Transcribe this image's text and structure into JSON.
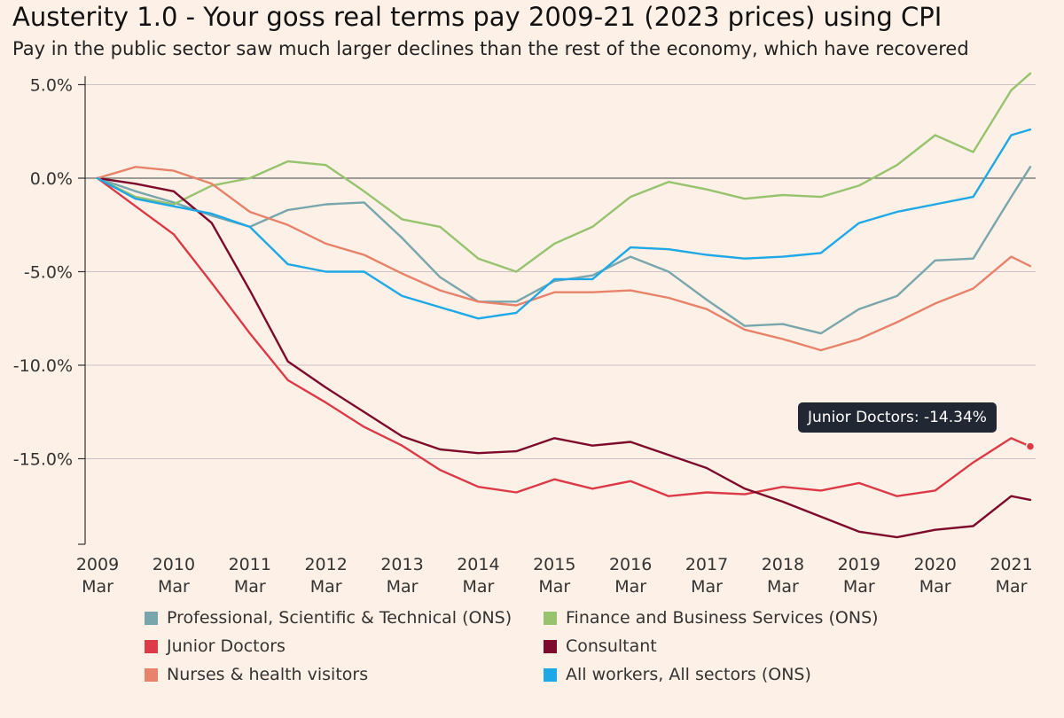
{
  "chart_data": {
    "type": "line",
    "title": "Austerity 1.0 - Your goss real terms pay 2009-21 (2023 prices) using CPI",
    "subtitle": "Pay in the public sector saw much larger declines than the rest of the economy, which have recovered",
    "xlabel": "",
    "ylabel": "",
    "x_ticks": [
      {
        "year": "2009",
        "month": "Mar"
      },
      {
        "year": "2010",
        "month": "Mar"
      },
      {
        "year": "2011",
        "month": "Mar"
      },
      {
        "year": "2012",
        "month": "Mar"
      },
      {
        "year": "2013",
        "month": "Mar"
      },
      {
        "year": "2014",
        "month": "Mar"
      },
      {
        "year": "2015",
        "month": "Mar"
      },
      {
        "year": "2016",
        "month": "Mar"
      },
      {
        "year": "2017",
        "month": "Mar"
      },
      {
        "year": "2018",
        "month": "Mar"
      },
      {
        "year": "2019",
        "month": "Mar"
      },
      {
        "year": "2020",
        "month": "Mar"
      },
      {
        "year": "2021",
        "month": "Mar"
      }
    ],
    "xlim": [
      "2009-03",
      "2021-06"
    ],
    "y_ticks": [
      "5.0%",
      "0.0%",
      "-5.0%",
      "-10.0%",
      "-15.0%"
    ],
    "ylim": [
      -19.5,
      5.5
    ],
    "grid": true,
    "legend_position": "bottom",
    "tooltip": "Junior Doctors: -14.34%",
    "series": [
      {
        "name": "Professional, Scientific & Technical (ONS)",
        "color": "#78a6ac",
        "points": [
          [
            "2009-03",
            0
          ],
          [
            "2009-09",
            -0.7
          ],
          [
            "2010-03",
            -1.3
          ],
          [
            "2010-09",
            -2.0
          ],
          [
            "2011-03",
            -2.6
          ],
          [
            "2011-09",
            -1.7
          ],
          [
            "2012-03",
            -1.4
          ],
          [
            "2012-09",
            -1.3
          ],
          [
            "2013-03",
            -3.2
          ],
          [
            "2013-09",
            -5.3
          ],
          [
            "2014-03",
            -6.6
          ],
          [
            "2014-09",
            -6.6
          ],
          [
            "2015-03",
            -5.5
          ],
          [
            "2015-09",
            -5.2
          ],
          [
            "2016-03",
            -4.2
          ],
          [
            "2016-09",
            -5.0
          ],
          [
            "2017-03",
            -6.5
          ],
          [
            "2017-09",
            -7.9
          ],
          [
            "2018-03",
            -7.8
          ],
          [
            "2018-09",
            -8.3
          ],
          [
            "2019-03",
            -7.0
          ],
          [
            "2019-09",
            -6.3
          ],
          [
            "2020-03",
            -4.4
          ],
          [
            "2020-09",
            -4.3
          ],
          [
            "2021-03",
            -1.0
          ],
          [
            "2021-06",
            0.6
          ]
        ]
      },
      {
        "name": "Finance and Business Services (ONS)",
        "color": "#97c36f",
        "points": [
          [
            "2009-03",
            0
          ],
          [
            "2009-09",
            -1.0
          ],
          [
            "2010-03",
            -1.4
          ],
          [
            "2010-09",
            -0.4
          ],
          [
            "2011-03",
            0.0
          ],
          [
            "2011-09",
            0.9
          ],
          [
            "2012-03",
            0.7
          ],
          [
            "2012-09",
            -0.7
          ],
          [
            "2013-03",
            -2.2
          ],
          [
            "2013-09",
            -2.6
          ],
          [
            "2014-03",
            -4.3
          ],
          [
            "2014-09",
            -5.0
          ],
          [
            "2015-03",
            -3.5
          ],
          [
            "2015-09",
            -2.6
          ],
          [
            "2016-03",
            -1.0
          ],
          [
            "2016-09",
            -0.2
          ],
          [
            "2017-03",
            -0.6
          ],
          [
            "2017-09",
            -1.1
          ],
          [
            "2018-03",
            -0.9
          ],
          [
            "2018-09",
            -1.0
          ],
          [
            "2019-03",
            -0.4
          ],
          [
            "2019-09",
            0.7
          ],
          [
            "2020-03",
            2.3
          ],
          [
            "2020-09",
            1.4
          ],
          [
            "2021-03",
            4.7
          ],
          [
            "2021-06",
            5.6
          ]
        ]
      },
      {
        "name": "Junior Doctors",
        "color": "#dc3a47",
        "points": [
          [
            "2009-03",
            0
          ],
          [
            "2009-09",
            -1.5
          ],
          [
            "2010-03",
            -3.0
          ],
          [
            "2010-09",
            -5.6
          ],
          [
            "2011-03",
            -8.3
          ],
          [
            "2011-09",
            -10.8
          ],
          [
            "2012-03",
            -12.0
          ],
          [
            "2012-09",
            -13.3
          ],
          [
            "2013-03",
            -14.3
          ],
          [
            "2013-09",
            -15.6
          ],
          [
            "2014-03",
            -16.5
          ],
          [
            "2014-09",
            -16.8
          ],
          [
            "2015-03",
            -16.1
          ],
          [
            "2015-09",
            -16.6
          ],
          [
            "2016-03",
            -16.2
          ],
          [
            "2016-09",
            -17.0
          ],
          [
            "2017-03",
            -16.8
          ],
          [
            "2017-09",
            -16.9
          ],
          [
            "2018-03",
            -16.5
          ],
          [
            "2018-09",
            -16.7
          ],
          [
            "2019-03",
            -16.3
          ],
          [
            "2019-09",
            -17.0
          ],
          [
            "2020-03",
            -16.7
          ],
          [
            "2020-09",
            -15.2
          ],
          [
            "2021-03",
            -13.9
          ],
          [
            "2021-06",
            -14.34
          ]
        ]
      },
      {
        "name": "Consultant",
        "color": "#7d0a2c",
        "points": [
          [
            "2009-03",
            0
          ],
          [
            "2009-09",
            -0.3
          ],
          [
            "2010-03",
            -0.7
          ],
          [
            "2010-09",
            -2.4
          ],
          [
            "2011-03",
            -6.0
          ],
          [
            "2011-09",
            -9.8
          ],
          [
            "2012-03",
            -11.2
          ],
          [
            "2012-09",
            -12.5
          ],
          [
            "2013-03",
            -13.8
          ],
          [
            "2013-09",
            -14.5
          ],
          [
            "2014-03",
            -14.7
          ],
          [
            "2014-09",
            -14.6
          ],
          [
            "2015-03",
            -13.9
          ],
          [
            "2015-09",
            -14.3
          ],
          [
            "2016-03",
            -14.1
          ],
          [
            "2016-09",
            -14.8
          ],
          [
            "2017-03",
            -15.5
          ],
          [
            "2017-09",
            -16.6
          ],
          [
            "2018-03",
            -17.3
          ],
          [
            "2018-09",
            -18.1
          ],
          [
            "2019-03",
            -18.9
          ],
          [
            "2019-09",
            -19.2
          ],
          [
            "2020-03",
            -18.8
          ],
          [
            "2020-09",
            -18.6
          ],
          [
            "2021-03",
            -17.0
          ],
          [
            "2021-06",
            -17.2
          ]
        ]
      },
      {
        "name": "Nurses & health visitors",
        "color": "#e8826a",
        "points": [
          [
            "2009-03",
            0
          ],
          [
            "2009-09",
            0.6
          ],
          [
            "2010-03",
            0.4
          ],
          [
            "2010-09",
            -0.3
          ],
          [
            "2011-03",
            -1.8
          ],
          [
            "2011-09",
            -2.5
          ],
          [
            "2012-03",
            -3.5
          ],
          [
            "2012-09",
            -4.1
          ],
          [
            "2013-03",
            -5.1
          ],
          [
            "2013-09",
            -6.0
          ],
          [
            "2014-03",
            -6.6
          ],
          [
            "2014-09",
            -6.8
          ],
          [
            "2015-03",
            -6.1
          ],
          [
            "2015-09",
            -6.1
          ],
          [
            "2016-03",
            -6.0
          ],
          [
            "2016-09",
            -6.4
          ],
          [
            "2017-03",
            -7.0
          ],
          [
            "2017-09",
            -8.1
          ],
          [
            "2018-03",
            -8.6
          ],
          [
            "2018-09",
            -9.2
          ],
          [
            "2019-03",
            -8.6
          ],
          [
            "2019-09",
            -7.7
          ],
          [
            "2020-03",
            -6.7
          ],
          [
            "2020-09",
            -5.9
          ],
          [
            "2021-03",
            -4.2
          ],
          [
            "2021-06",
            -4.7
          ]
        ]
      },
      {
        "name": "All workers, All sectors (ONS)",
        "color": "#1ea8e6",
        "points": [
          [
            "2009-03",
            0
          ],
          [
            "2009-09",
            -1.1
          ],
          [
            "2010-03",
            -1.5
          ],
          [
            "2010-09",
            -1.9
          ],
          [
            "2011-03",
            -2.6
          ],
          [
            "2011-09",
            -4.6
          ],
          [
            "2012-03",
            -5.0
          ],
          [
            "2012-09",
            -5.0
          ],
          [
            "2013-03",
            -6.3
          ],
          [
            "2013-09",
            -6.9
          ],
          [
            "2014-03",
            -7.5
          ],
          [
            "2014-09",
            -7.2
          ],
          [
            "2015-03",
            -5.4
          ],
          [
            "2015-09",
            -5.4
          ],
          [
            "2016-03",
            -3.7
          ],
          [
            "2016-09",
            -3.8
          ],
          [
            "2017-03",
            -4.1
          ],
          [
            "2017-09",
            -4.3
          ],
          [
            "2018-03",
            -4.2
          ],
          [
            "2018-09",
            -4.0
          ],
          [
            "2019-03",
            -2.4
          ],
          [
            "2019-09",
            -1.8
          ],
          [
            "2020-03",
            -1.4
          ],
          [
            "2020-09",
            -1.0
          ],
          [
            "2021-03",
            2.3
          ],
          [
            "2021-06",
            2.6
          ]
        ]
      }
    ],
    "legend_order": [
      0,
      1,
      2,
      3,
      4,
      5
    ]
  }
}
